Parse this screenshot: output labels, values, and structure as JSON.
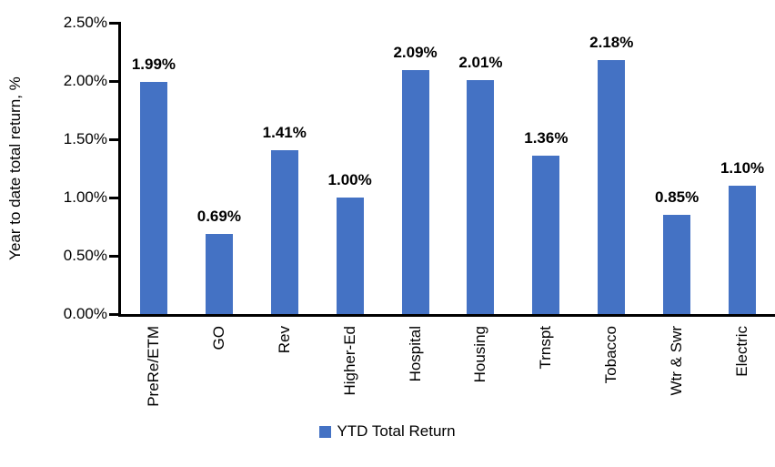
{
  "chart_data": {
    "type": "bar",
    "categories": [
      "PreRe/ETM",
      "GO",
      "Rev",
      "Higher-Ed",
      "Hospital",
      "Housing",
      "Trnspt",
      "Tobacco",
      "Wtr & Swr",
      "Electric"
    ],
    "values": [
      1.99,
      0.69,
      1.41,
      1.0,
      2.09,
      2.01,
      1.36,
      2.18,
      0.85,
      1.1
    ],
    "value_labels": [
      "1.99%",
      "0.69%",
      "1.41%",
      "1.00%",
      "2.09%",
      "2.01%",
      "1.36%",
      "2.18%",
      "0.85%",
      "1.10%"
    ],
    "title": "",
    "xlabel": "",
    "ylabel": "Year to date total return, %",
    "ylim": [
      0,
      2.5
    ],
    "ytick_step": 0.5,
    "ytick_labels": [
      "0.00%",
      "0.50%",
      "1.00%",
      "1.50%",
      "2.00%",
      "2.50%"
    ],
    "grid": false,
    "legend_position": "bottom",
    "legend": [
      {
        "name": "YTD Total Return",
        "color": "#4472C4"
      }
    ]
  },
  "colors": {
    "bar": "#4472C4",
    "axis": "#000000",
    "text": "#000000",
    "background": "#FFFFFF"
  }
}
